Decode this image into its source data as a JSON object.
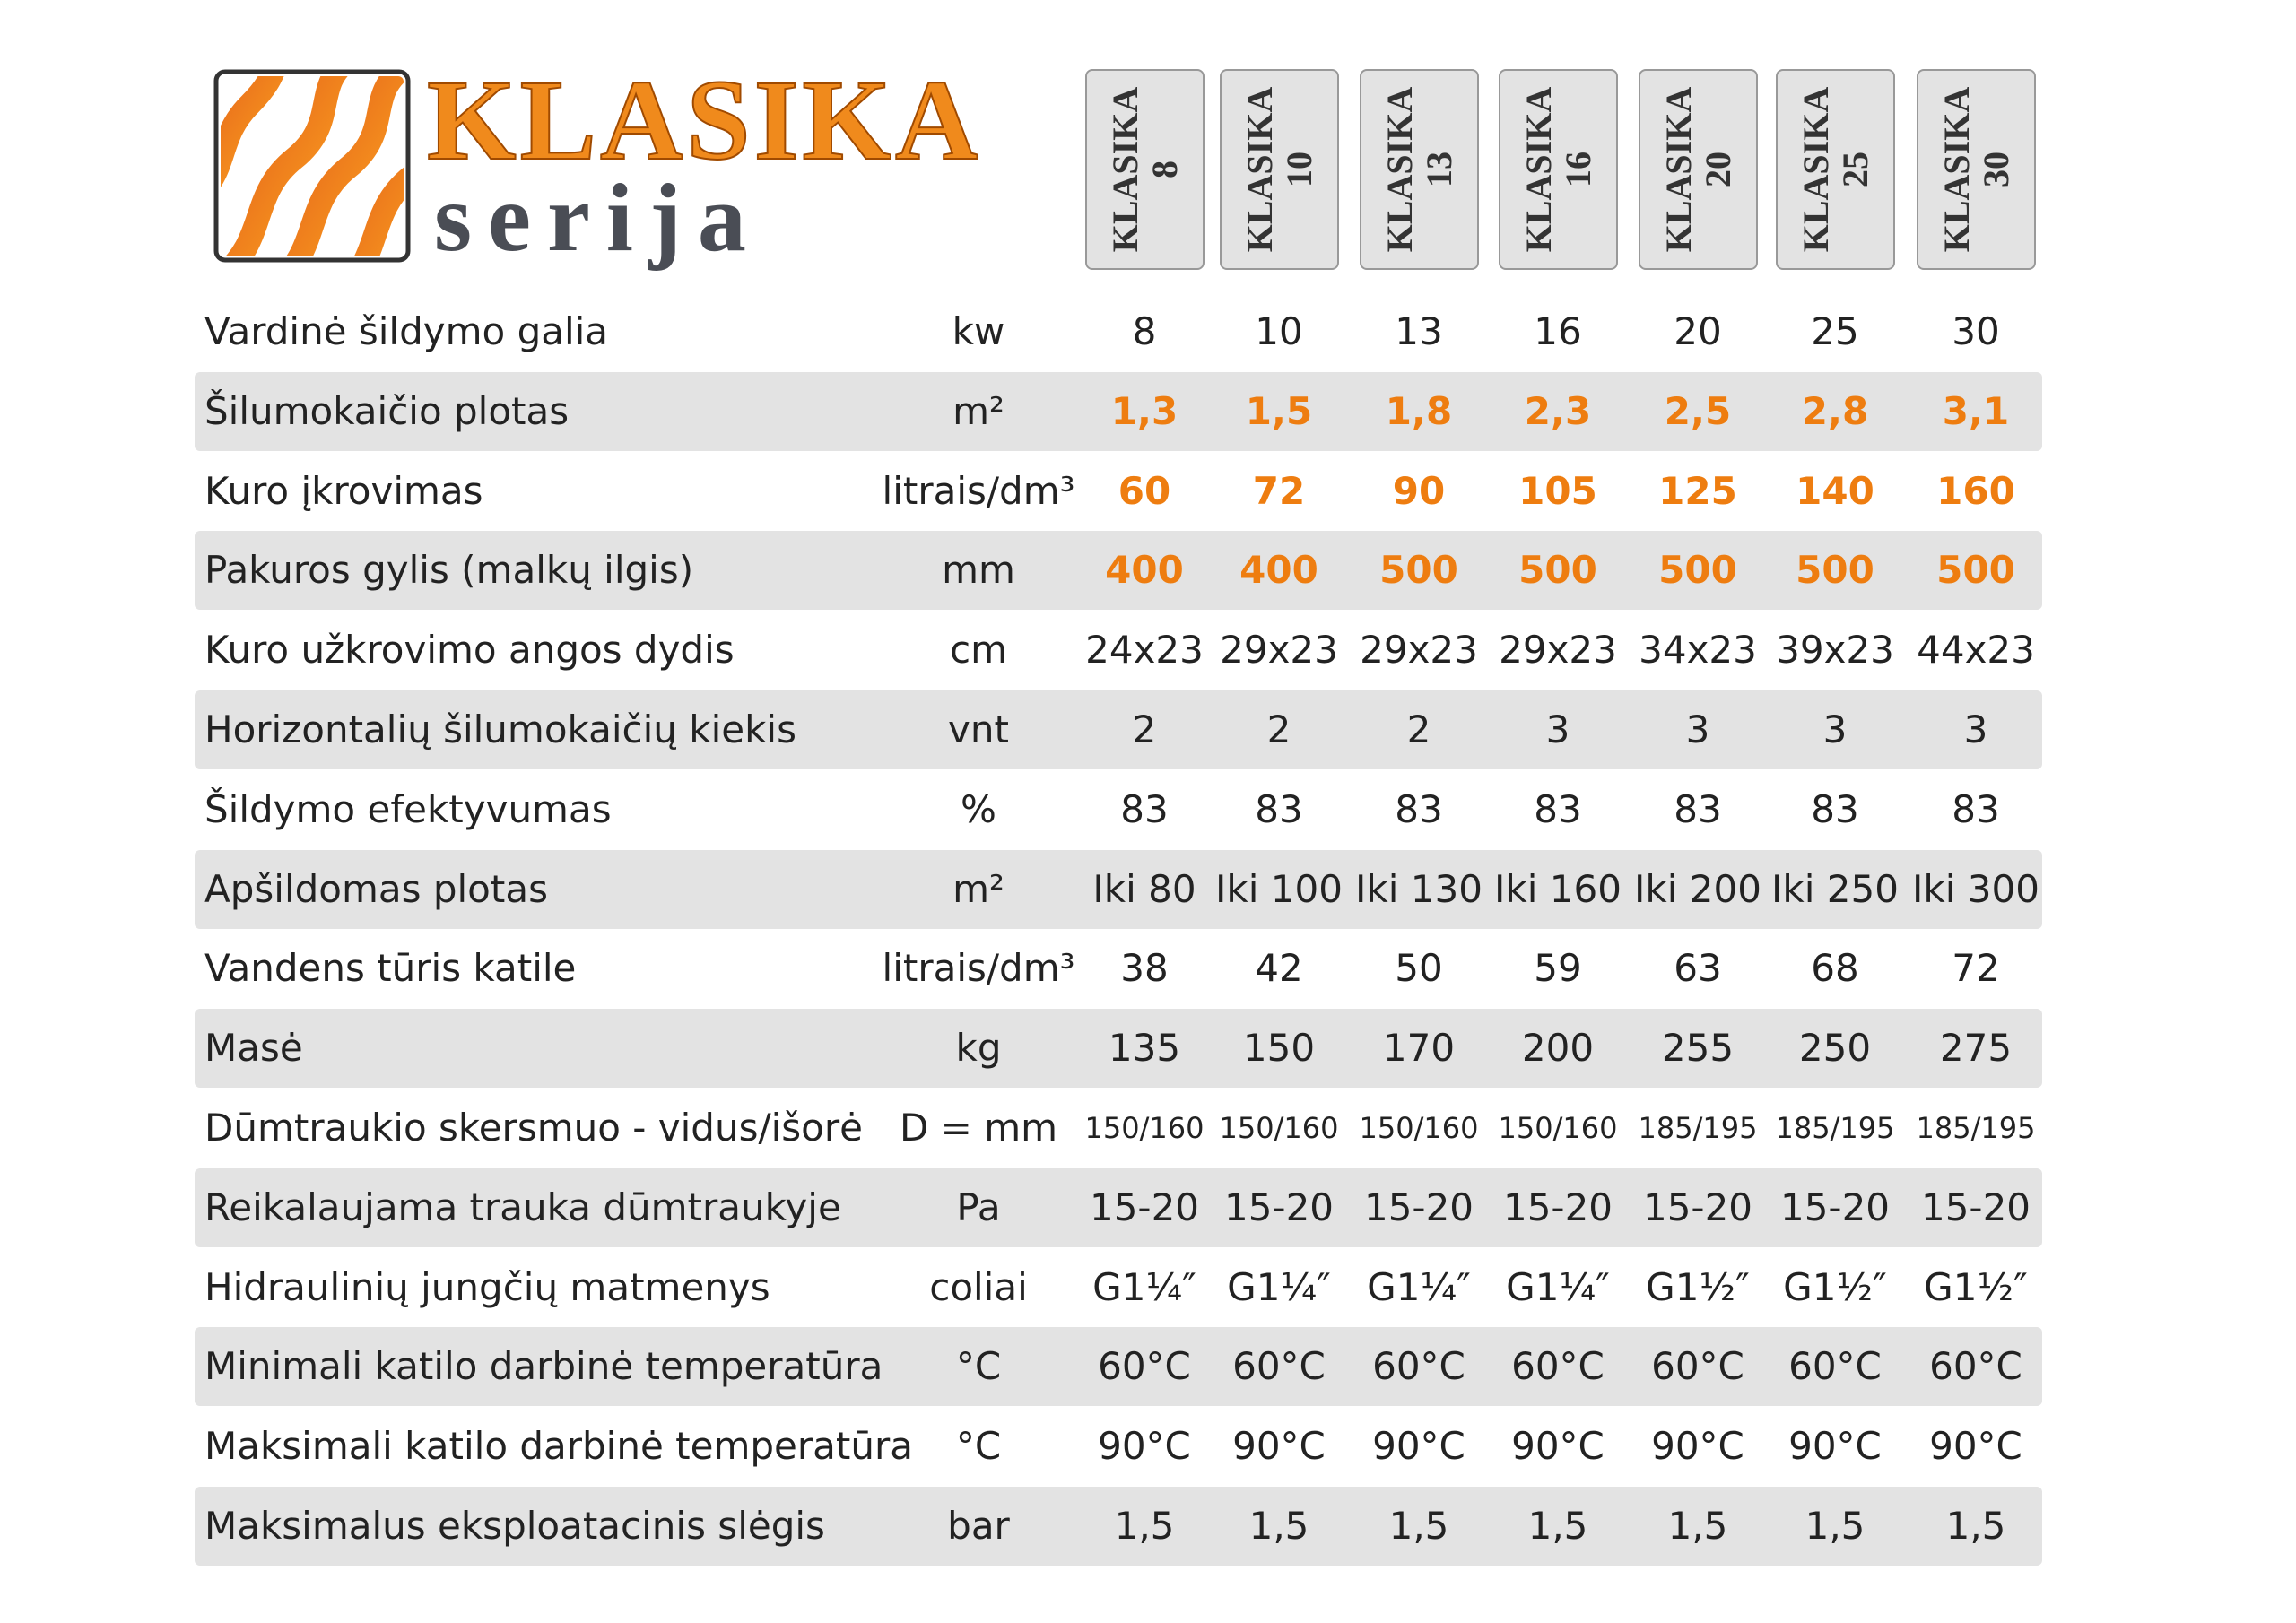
{
  "header": {
    "brand": "KLASIKA",
    "subtitle": "serija",
    "models": [
      [
        "KLASIKA",
        "8"
      ],
      [
        "KLASIKA",
        "10"
      ],
      [
        "KLASIKA",
        "13"
      ],
      [
        "KLASIKA",
        "16"
      ],
      [
        "KLASIKA",
        "20"
      ],
      [
        "KLASIKA",
        "25"
      ],
      [
        "KLASIKA",
        "30"
      ]
    ]
  },
  "table": {
    "rows": [
      [
        "Vardinė šildymo galia",
        "kw",
        "8",
        "10",
        "13",
        "16",
        "20",
        "25",
        "30"
      ],
      [
        "Šilumokaičio plotas",
        "m²",
        "1,3",
        "1,5",
        "1,8",
        "2,3",
        "2,5",
        "2,8",
        "3,1"
      ],
      [
        "Kuro įkrovimas",
        "litrais/dm³",
        "60",
        "72",
        "90",
        "105",
        "125",
        "140",
        "160"
      ],
      [
        "Pakuros gylis (malkų ilgis)",
        "mm",
        "400",
        "400",
        "500",
        "500",
        "500",
        "500",
        "500"
      ],
      [
        "Kuro užkrovimo angos dydis",
        "cm",
        "24x23",
        "29x23",
        "29x23",
        "29x23",
        "34x23",
        "39x23",
        "44x23"
      ],
      [
        "Horizontalių šilumokaičių kiekis",
        "vnt",
        "2",
        "2",
        "2",
        "3",
        "3",
        "3",
        "3"
      ],
      [
        "Šildymo efektyvumas",
        "%",
        "83",
        "83",
        "83",
        "83",
        "83",
        "83",
        "83"
      ],
      [
        "Apšildomas plotas",
        "m²",
        "Iki 80",
        "Iki 100",
        "Iki 130",
        "Iki 160",
        "Iki 200",
        "Iki 250",
        "Iki 300"
      ],
      [
        "Vandens tūris katile",
        "litrais/dm³",
        "38",
        "42",
        "50",
        "59",
        "63",
        "68",
        "72"
      ],
      [
        "Masė",
        "kg",
        "135",
        "150",
        "170",
        "200",
        "255",
        "250",
        "275"
      ],
      [
        "Dūmtraukio skersmuo - vidus/išorė",
        "D = mm",
        "150/160",
        "150/160",
        "150/160",
        "150/160",
        "185/195",
        "185/195",
        "185/195"
      ],
      [
        "Reikalaujama trauka dūmtraukyje",
        "Pa",
        "15-20",
        "15-20",
        "15-20",
        "15-20",
        "15-20",
        "15-20",
        "15-20"
      ],
      [
        "Hidraulinių jungčių matmenys",
        "coliai",
        "G1¼″",
        "G1¼″",
        "G1¼″",
        "G1¼″",
        "G1½″",
        "G1½″",
        "G1½″"
      ],
      [
        "Minimali katilo darbinė temperatūra",
        "°C",
        "60°C",
        "60°C",
        "60°C",
        "60°C",
        "60°C",
        "60°C",
        "60°C"
      ],
      [
        "Maksimali katilo darbinė temperatūra",
        "°C",
        "90°C",
        "90°C",
        "90°C",
        "90°C",
        "90°C",
        "90°C",
        "90°C"
      ],
      [
        "Maksimalus eksploatacinis slėgis",
        "bar",
        "1,5",
        "1,5",
        "1,5",
        "1,5",
        "1,5",
        "1,5",
        "1,5"
      ]
    ]
  }
}
